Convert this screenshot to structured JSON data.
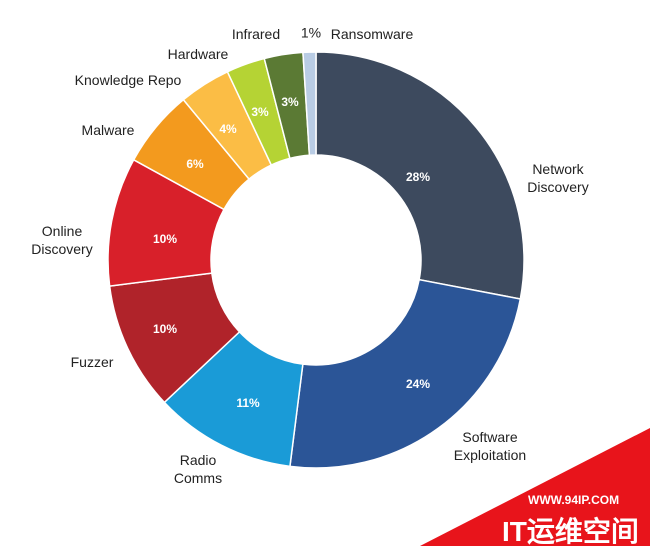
{
  "chart_data": {
    "type": "donut",
    "categories": [
      "Network Discovery",
      "Software Exploitation",
      "Radio Comms",
      "Fuzzer",
      "Online Discovery",
      "Malware",
      "Knowledge Repo",
      "Hardware",
      "Infrared",
      "Ransomware"
    ],
    "values": [
      28,
      24,
      11,
      10,
      10,
      6,
      4,
      3,
      3,
      1
    ],
    "value_labels": [
      "28%",
      "24%",
      "11%",
      "10%",
      "10%",
      "6%",
      "4%",
      "3%",
      "3%",
      "1%"
    ],
    "colors": [
      "#3d4a5e",
      "#2b5597",
      "#1a9bd7",
      "#b0232a",
      "#d8202a",
      "#f39a1e",
      "#fbbd45",
      "#b5d334",
      "#5b7a34",
      "#b9cce4"
    ]
  },
  "watermark": {
    "url": "WWW.94IP.COM",
    "text": "IT运维空间"
  }
}
